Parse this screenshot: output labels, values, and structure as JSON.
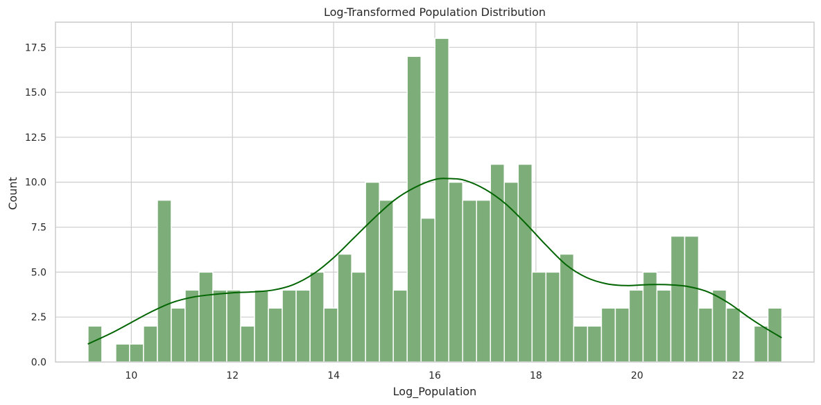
{
  "chart_data": {
    "type": "bar",
    "title": "Log-Transformed Population Distribution",
    "xlabel": "Log_Population",
    "ylabel": "Count",
    "xlim": [
      8.5,
      23.5
    ],
    "ylim": [
      0,
      18.9
    ],
    "xticks": [
      10,
      12,
      14,
      16,
      18,
      20,
      22
    ],
    "yticks": [
      0.0,
      2.5,
      5.0,
      7.5,
      10.0,
      12.5,
      15.0,
      17.5
    ],
    "ytick_labels": [
      "0.0",
      "2.5",
      "5.0",
      "7.5",
      "10.0",
      "12.5",
      "15.0",
      "17.5"
    ],
    "grid": true,
    "bin_start": 9.143,
    "bin_width": 0.2744,
    "counts": [
      2,
      0,
      1,
      1,
      2,
      9,
      3,
      4,
      5,
      4,
      4,
      2,
      4,
      3,
      4,
      4,
      5,
      3,
      6,
      5,
      10,
      9,
      4,
      17,
      8,
      18,
      10,
      9,
      9,
      11,
      10,
      11,
      5,
      5,
      6,
      2,
      2,
      3,
      3,
      4,
      5,
      4,
      7,
      7,
      3,
      4,
      3,
      0,
      2,
      3
    ],
    "kde": {
      "x": [
        9.14,
        9.6,
        10.0,
        10.4,
        10.8,
        11.2,
        11.6,
        12.0,
        12.4,
        12.8,
        13.2,
        13.6,
        14.0,
        14.4,
        14.8,
        15.2,
        15.6,
        16.0,
        16.3,
        16.6,
        17.0,
        17.4,
        17.8,
        18.2,
        18.6,
        19.0,
        19.4,
        19.8,
        20.2,
        20.6,
        21.0,
        21.4,
        21.8,
        22.2,
        22.5,
        22.86
      ],
      "y": [
        1.0,
        1.6,
        2.2,
        2.8,
        3.3,
        3.6,
        3.75,
        3.85,
        3.9,
        4.0,
        4.3,
        4.9,
        5.8,
        6.9,
        8.0,
        9.0,
        9.7,
        10.15,
        10.2,
        10.1,
        9.6,
        8.8,
        7.7,
        6.5,
        5.4,
        4.7,
        4.35,
        4.25,
        4.3,
        4.3,
        4.2,
        3.9,
        3.3,
        2.5,
        1.95,
        1.35
      ]
    },
    "bar_color": "#7dae79",
    "bar_edge_color": "#ffffff",
    "kde_color": "#006400",
    "grid_color": "#cccccc"
  }
}
